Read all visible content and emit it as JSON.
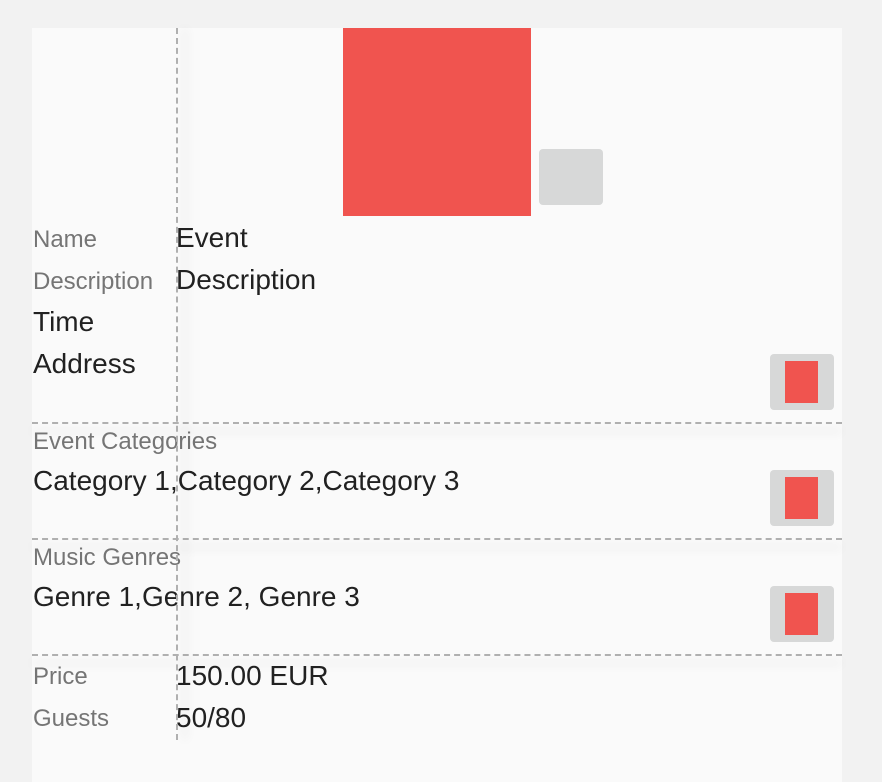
{
  "colors": {
    "accent": "#f0544f",
    "button_bg": "#d7d8d8"
  },
  "event": {
    "name_label": "Name",
    "name_value": "Event",
    "description_label": "Description",
    "description_value": "Description",
    "time_label": "Time",
    "address_label": "Address"
  },
  "categories": {
    "label": "Event Categories",
    "value": "Category 1,Category 2,Category 3"
  },
  "genres": {
    "label": "Music Genres",
    "value": "Genre 1,Genre 2, Genre 3"
  },
  "price": {
    "label": "Price",
    "value": "150.00 EUR"
  },
  "guests": {
    "label": "Guests",
    "value": "50/80"
  }
}
